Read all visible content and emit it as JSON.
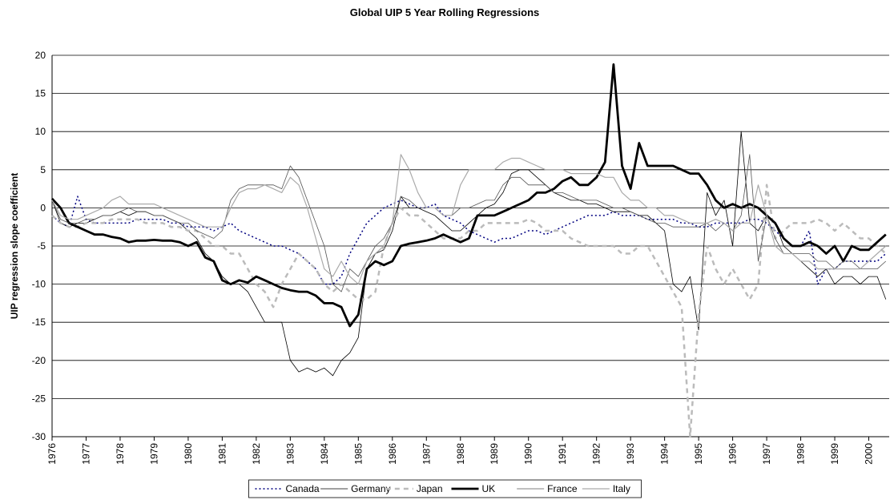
{
  "chart_data": {
    "type": "line",
    "title": "Global UIP 5 Year Rolling Regressions",
    "y_label": "UIP regression slope coefficient",
    "x": [
      1976,
      1976.25,
      1976.5,
      1976.75,
      1977,
      1977.25,
      1977.5,
      1977.75,
      1978,
      1978.25,
      1978.5,
      1978.75,
      1979,
      1979.25,
      1979.5,
      1979.75,
      1980,
      1980.25,
      1980.5,
      1980.75,
      1981,
      1981.25,
      1981.5,
      1981.75,
      1982,
      1982.25,
      1982.5,
      1982.75,
      1983,
      1983.25,
      1983.5,
      1983.75,
      1984,
      1984.25,
      1984.5,
      1984.75,
      1985,
      1985.25,
      1985.5,
      1985.75,
      1986,
      1986.25,
      1986.5,
      1986.75,
      1987,
      1987.25,
      1987.5,
      1987.75,
      1988,
      1988.25,
      1988.5,
      1988.75,
      1989,
      1989.25,
      1989.5,
      1989.75,
      1990,
      1990.25,
      1990.5,
      1990.75,
      1991,
      1991.25,
      1991.5,
      1991.75,
      1992,
      1992.25,
      1992.5,
      1992.75,
      1993,
      1993.25,
      1993.5,
      1993.75,
      1994,
      1994.25,
      1994.5,
      1994.75,
      1995,
      1995.25,
      1995.5,
      1995.75,
      1996,
      1996.25,
      1996.5,
      1996.75,
      1997,
      1997.25,
      1997.5,
      1997.75,
      1998,
      1998.25,
      1998.5,
      1998.75,
      1999,
      1999.25,
      1999.5,
      1999.75,
      2000,
      2000.25,
      2000.5
    ],
    "series": [
      {
        "name": "Canada",
        "color": "#000080",
        "dash": "2,3",
        "width": 1.5,
        "values": [
          -1,
          -2,
          -2.5,
          1.5,
          -1.5,
          -2,
          -2,
          -2,
          -2,
          -2,
          -1.5,
          -1.5,
          -1.5,
          -1.5,
          -2,
          -2,
          -2.5,
          -2.5,
          -2.5,
          -3,
          -2.5,
          -2,
          -3,
          -3.5,
          -4,
          -4.5,
          -5,
          -5,
          -5.5,
          -6,
          -7,
          -8,
          -10,
          -10,
          -9,
          -6,
          -4,
          -2,
          -1,
          0,
          0.5,
          1,
          0.5,
          0,
          0,
          0.5,
          -1,
          -1.5,
          -2,
          -3,
          -3.5,
          -4,
          -4.5,
          -4,
          -4,
          -3.5,
          -3,
          -3,
          -3.5,
          -3,
          -2.5,
          -2,
          -1.5,
          -1,
          -1,
          -1,
          -0.5,
          -1,
          -1,
          -1,
          -1.5,
          -1.5,
          -1.5,
          -1.5,
          -2,
          -2,
          -2.5,
          -2.5,
          -2,
          -2,
          -2,
          -2,
          -1.5,
          -1.5,
          -2,
          -3,
          -4,
          -5,
          -5,
          -3,
          -10,
          -8,
          -8,
          -7,
          -7,
          -7,
          -7,
          -7,
          -6
        ]
      },
      {
        "name": "Germany",
        "color": "#000000",
        "dash": "",
        "width": 0.8,
        "values": [
          1,
          -2,
          -2.5,
          -2,
          -2,
          -1.5,
          -1,
          -1,
          -0.5,
          -1,
          -0.5,
          -0.5,
          -1,
          -1,
          -1.5,
          -2,
          -3,
          -4,
          -6,
          -7,
          -9,
          -10,
          -10,
          -11,
          -13,
          -15,
          -15,
          -15,
          -20,
          -21.5,
          -21,
          -21.5,
          -21,
          -22,
          -20,
          -19,
          -17,
          -8,
          -6,
          -5.5,
          -3,
          1.5,
          0,
          0,
          -0.5,
          -1,
          -2,
          -3,
          -3,
          -2,
          -1,
          0,
          0.5,
          2,
          4.5,
          5,
          5,
          4,
          3,
          2,
          1.5,
          1,
          1,
          0.5,
          0.5,
          0,
          -0.5,
          -0.5,
          -0.5,
          -1,
          -1,
          -2,
          -3,
          -10,
          -11,
          -9,
          -16,
          2,
          -1,
          1,
          -5,
          10,
          -2,
          -3,
          -1,
          -2,
          -5,
          -6,
          -7,
          -8,
          -9,
          -8,
          -10,
          -9,
          -9,
          -10,
          -9,
          -9,
          -12
        ]
      },
      {
        "name": "Japan",
        "color": "#bbbbbb",
        "dash": "6,5",
        "width": 2.5,
        "values": [
          -1,
          -2,
          -2.5,
          -2.5,
          -2,
          -2,
          -2,
          -1.5,
          -1.5,
          -1.5,
          -1.5,
          -2,
          -2,
          -2,
          -2.5,
          -2.5,
          -3,
          -3,
          -4,
          -5,
          -5,
          -6,
          -6,
          -8,
          -10,
          -11,
          -13,
          -10,
          -8,
          -6,
          -7,
          -8,
          -10,
          -11,
          -10,
          -11,
          -12,
          -12,
          -11,
          -5,
          -2,
          0,
          -1,
          -1,
          -2,
          -3,
          -4,
          -4,
          -4,
          -3,
          -3,
          -2,
          -2,
          -2,
          -2,
          -2,
          -1.5,
          -2,
          -3,
          -3,
          -3,
          -4,
          -4.5,
          -5,
          -5,
          -5,
          -5,
          -6,
          -6,
          -5,
          -5,
          -7,
          -9,
          -11,
          -13,
          -30,
          -14,
          -5,
          -8,
          -10,
          -8,
          -10,
          -12,
          -10,
          3,
          -4,
          -3,
          -2,
          -2,
          -2,
          -1.5,
          -2,
          -3,
          -2,
          -3,
          -4,
          -4,
          -5,
          -6
        ]
      },
      {
        "name": "UK",
        "color": "#000000",
        "dash": "",
        "width": 2.8,
        "values": [
          1.2,
          0,
          -2,
          -2.5,
          -3,
          -3.5,
          -3.5,
          -3.8,
          -4,
          -4.5,
          -4.3,
          -4.3,
          -4.2,
          -4.3,
          -4.3,
          -4.5,
          -5,
          -4.5,
          -6.5,
          -7,
          -9.5,
          -10,
          -9.5,
          -9.8,
          -9,
          -9.5,
          -10,
          -10.5,
          -10.8,
          -11,
          -11,
          -11.5,
          -12.5,
          -12.5,
          -13,
          -15.5,
          -14,
          -8,
          -7,
          -7.5,
          -7,
          -5,
          -4.7,
          -4.5,
          -4.3,
          -4,
          -3.5,
          -4,
          -4.5,
          -4,
          -1,
          -1,
          -1,
          -0.5,
          0,
          0.5,
          1,
          2,
          2,
          2.5,
          3.5,
          4,
          3,
          3,
          4,
          6,
          18.8,
          5.5,
          2.5,
          8.5,
          5.5,
          5.5,
          5.5,
          5.5,
          5,
          4.5,
          4.5,
          3,
          1,
          0,
          0.5,
          0,
          0.5,
          0,
          -1,
          -2,
          -4,
          -5,
          -5,
          -4.5,
          -5,
          -6,
          -5,
          -7,
          -5,
          -5.5,
          -5.5,
          -4.5,
          -3.5
        ]
      },
      {
        "name": "France",
        "color": "#555555",
        "dash": "",
        "width": 0.8,
        "values": [
          1,
          -1.5,
          -2,
          -2,
          -1.5,
          -1.5,
          -1,
          -1,
          -0.5,
          0,
          -0.5,
          -0.5,
          -1,
          -1,
          -1.5,
          -2,
          -2,
          -3,
          -3.5,
          -4,
          -3,
          1,
          2.5,
          3,
          3,
          3,
          3,
          2.5,
          5.5,
          4,
          1,
          -2,
          -5,
          -10,
          -11,
          -8,
          -9,
          -7,
          -5,
          -4,
          -2,
          1.5,
          1,
          0,
          0,
          0,
          -1,
          -1,
          0,
          0,
          0.5,
          1,
          1,
          3,
          4,
          4,
          3,
          3,
          3,
          2,
          2,
          1.5,
          1,
          1,
          1,
          0.5,
          0,
          0,
          -0.5,
          -1,
          -1.5,
          -2,
          -2,
          -2.5,
          -2.5,
          -2.5,
          -2.5,
          -2,
          -3,
          -2,
          -3,
          -1,
          7,
          -7,
          -1,
          -4,
          -6,
          -6,
          -6,
          -6,
          -7,
          -7,
          -8,
          -7,
          -7,
          -8,
          -8,
          -8,
          -7
        ]
      },
      {
        "name": "Italy",
        "color": "#aaaaaa",
        "dash": "",
        "width": 1.2,
        "values": [
          1,
          -1,
          -1.5,
          -1.5,
          -1,
          -0.5,
          0,
          1,
          1.5,
          0.5,
          0.5,
          0.5,
          0.5,
          0,
          -0.5,
          -1,
          -1.5,
          -2,
          -2.5,
          -2.5,
          -2.5,
          0,
          2,
          2.5,
          2.5,
          3,
          2.5,
          2,
          4,
          3,
          0,
          -4,
          -8,
          -9,
          -7,
          -9,
          -10,
          -7,
          -6,
          -5,
          -2,
          7,
          5,
          2,
          0,
          0,
          -1,
          -1,
          3,
          5,
          5,
          5,
          5,
          6,
          6.5,
          6.5,
          6,
          5.5,
          5,
          5,
          5,
          4.5,
          4.5,
          4.5,
          4.5,
          4,
          4,
          2,
          1,
          1,
          0,
          0,
          -1,
          -1,
          -1.5,
          -2,
          -2,
          -2,
          -1.5,
          -2,
          -3,
          -2,
          -2,
          3,
          -1,
          -5,
          -6,
          -6,
          -7,
          -7,
          -8,
          -8,
          -8,
          -8,
          -8,
          -8,
          -7,
          -6,
          -5
        ]
      }
    ],
    "xlim": [
      1976,
      2000.6
    ],
    "xticks": [
      1976,
      1977,
      1978,
      1979,
      1980,
      1981,
      1982,
      1983,
      1984,
      1985,
      1986,
      1987,
      1988,
      1989,
      1990,
      1991,
      1992,
      1993,
      1994,
      1995,
      1996,
      1997,
      1998,
      1999,
      2000
    ],
    "ylim": [
      -30,
      20
    ],
    "yticks": [
      -30,
      -25,
      -20,
      -15,
      -10,
      -5,
      0,
      5,
      10,
      15,
      20
    ],
    "grid": true,
    "legend": "bottom"
  }
}
